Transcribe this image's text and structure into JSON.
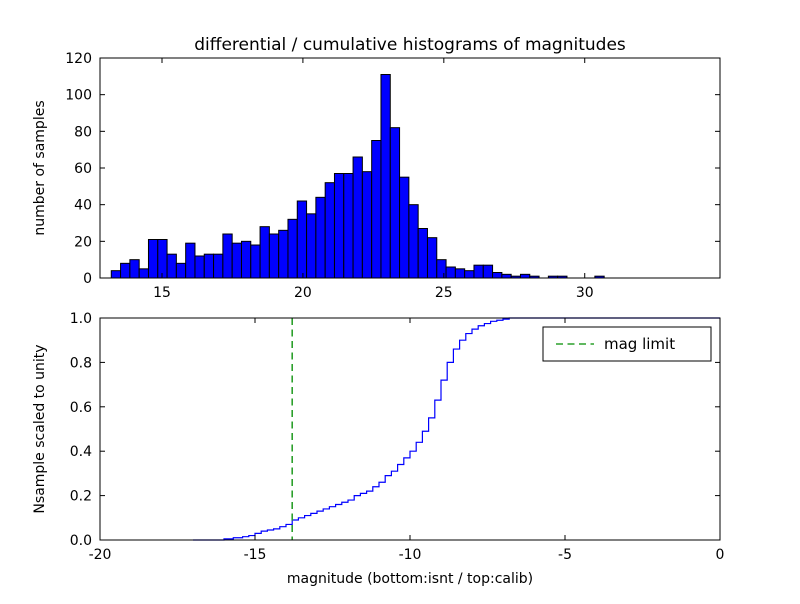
{
  "figure": {
    "background": "#ffffff",
    "title": "differential / cumulative histograms of magnitudes"
  },
  "chart_data": [
    {
      "type": "bar",
      "role": "differential-histogram",
      "title": "differential / cumulative histograms of magnitudes",
      "ylabel": "number of samples",
      "xlim": [
        12.8,
        34.8
      ],
      "ylim": [
        0,
        120
      ],
      "xticks": [
        15,
        20,
        25,
        30
      ],
      "xtick_labels": [
        "15",
        "20",
        "25",
        "30"
      ],
      "yticks": [
        0,
        20,
        40,
        60,
        80,
        100,
        120
      ],
      "ytick_labels": [
        "0",
        "20",
        "40",
        "60",
        "80",
        "100",
        "120"
      ],
      "grid": false,
      "bin_start": 13.2,
      "bin_width": 0.33,
      "bar_color": "#0000ff",
      "bar_edge": "#000000",
      "values": [
        4,
        8,
        10,
        5,
        21,
        21,
        13,
        8,
        19,
        12,
        13,
        13,
        24,
        19,
        20,
        18,
        28,
        24,
        26,
        32,
        42,
        35,
        44,
        52,
        57,
        57,
        66,
        58,
        75,
        111,
        82,
        55,
        40,
        27,
        22,
        10,
        6,
        5,
        4,
        7,
        7,
        3,
        2,
        1,
        2,
        1,
        0,
        1,
        1,
        0,
        0,
        0,
        1,
        0
      ]
    },
    {
      "type": "line",
      "role": "cumulative-histogram",
      "step": true,
      "xlabel": "magnitude (bottom:isnt / top:calib)",
      "ylabel": "Nsample scaled to unity",
      "xlim": [
        -20,
        0
      ],
      "ylim": [
        0,
        1
      ],
      "xticks": [
        -20,
        -15,
        -10,
        -5,
        0
      ],
      "xtick_labels": [
        "-20",
        "-15",
        "-10",
        "-5",
        "0"
      ],
      "yticks": [
        0,
        0.2,
        0.4,
        0.6,
        0.8,
        1.0
      ],
      "ytick_labels": [
        "0.0",
        "0.2",
        "0.4",
        "0.6",
        "0.8",
        "1.0"
      ],
      "grid": false,
      "line_color": "#0000ff",
      "mag_limit": {
        "x": -13.8,
        "color": "#2ca02c",
        "style": "dashed"
      },
      "legend": {
        "label": "mag limit",
        "position": "upper right"
      },
      "points": [
        [
          -17.0,
          0
        ],
        [
          -16.0,
          0.005
        ],
        [
          -15.7,
          0.01
        ],
        [
          -15.4,
          0.015
        ],
        [
          -15.2,
          0.02
        ],
        [
          -15.0,
          0.03
        ],
        [
          -14.8,
          0.04
        ],
        [
          -14.6,
          0.045
        ],
        [
          -14.4,
          0.05
        ],
        [
          -14.2,
          0.06
        ],
        [
          -14.0,
          0.07
        ],
        [
          -13.8,
          0.09
        ],
        [
          -13.6,
          0.1
        ],
        [
          -13.4,
          0.11
        ],
        [
          -13.2,
          0.12
        ],
        [
          -13.0,
          0.13
        ],
        [
          -12.8,
          0.14
        ],
        [
          -12.6,
          0.15
        ],
        [
          -12.4,
          0.16
        ],
        [
          -12.2,
          0.17
        ],
        [
          -12.0,
          0.18
        ],
        [
          -11.8,
          0.2
        ],
        [
          -11.6,
          0.21
        ],
        [
          -11.4,
          0.22
        ],
        [
          -11.2,
          0.24
        ],
        [
          -11.0,
          0.26
        ],
        [
          -10.8,
          0.29
        ],
        [
          -10.6,
          0.31
        ],
        [
          -10.4,
          0.34
        ],
        [
          -10.2,
          0.37
        ],
        [
          -10.0,
          0.4
        ],
        [
          -9.8,
          0.44
        ],
        [
          -9.6,
          0.49
        ],
        [
          -9.4,
          0.55
        ],
        [
          -9.2,
          0.63
        ],
        [
          -9.0,
          0.72
        ],
        [
          -8.8,
          0.8
        ],
        [
          -8.6,
          0.86
        ],
        [
          -8.4,
          0.9
        ],
        [
          -8.2,
          0.93
        ],
        [
          -8.0,
          0.95
        ],
        [
          -7.8,
          0.965
        ],
        [
          -7.6,
          0.975
        ],
        [
          -7.4,
          0.985
        ],
        [
          -7.2,
          0.99
        ],
        [
          -7.0,
          0.995
        ],
        [
          -6.8,
          1.0
        ],
        [
          0,
          1.0
        ]
      ]
    }
  ]
}
